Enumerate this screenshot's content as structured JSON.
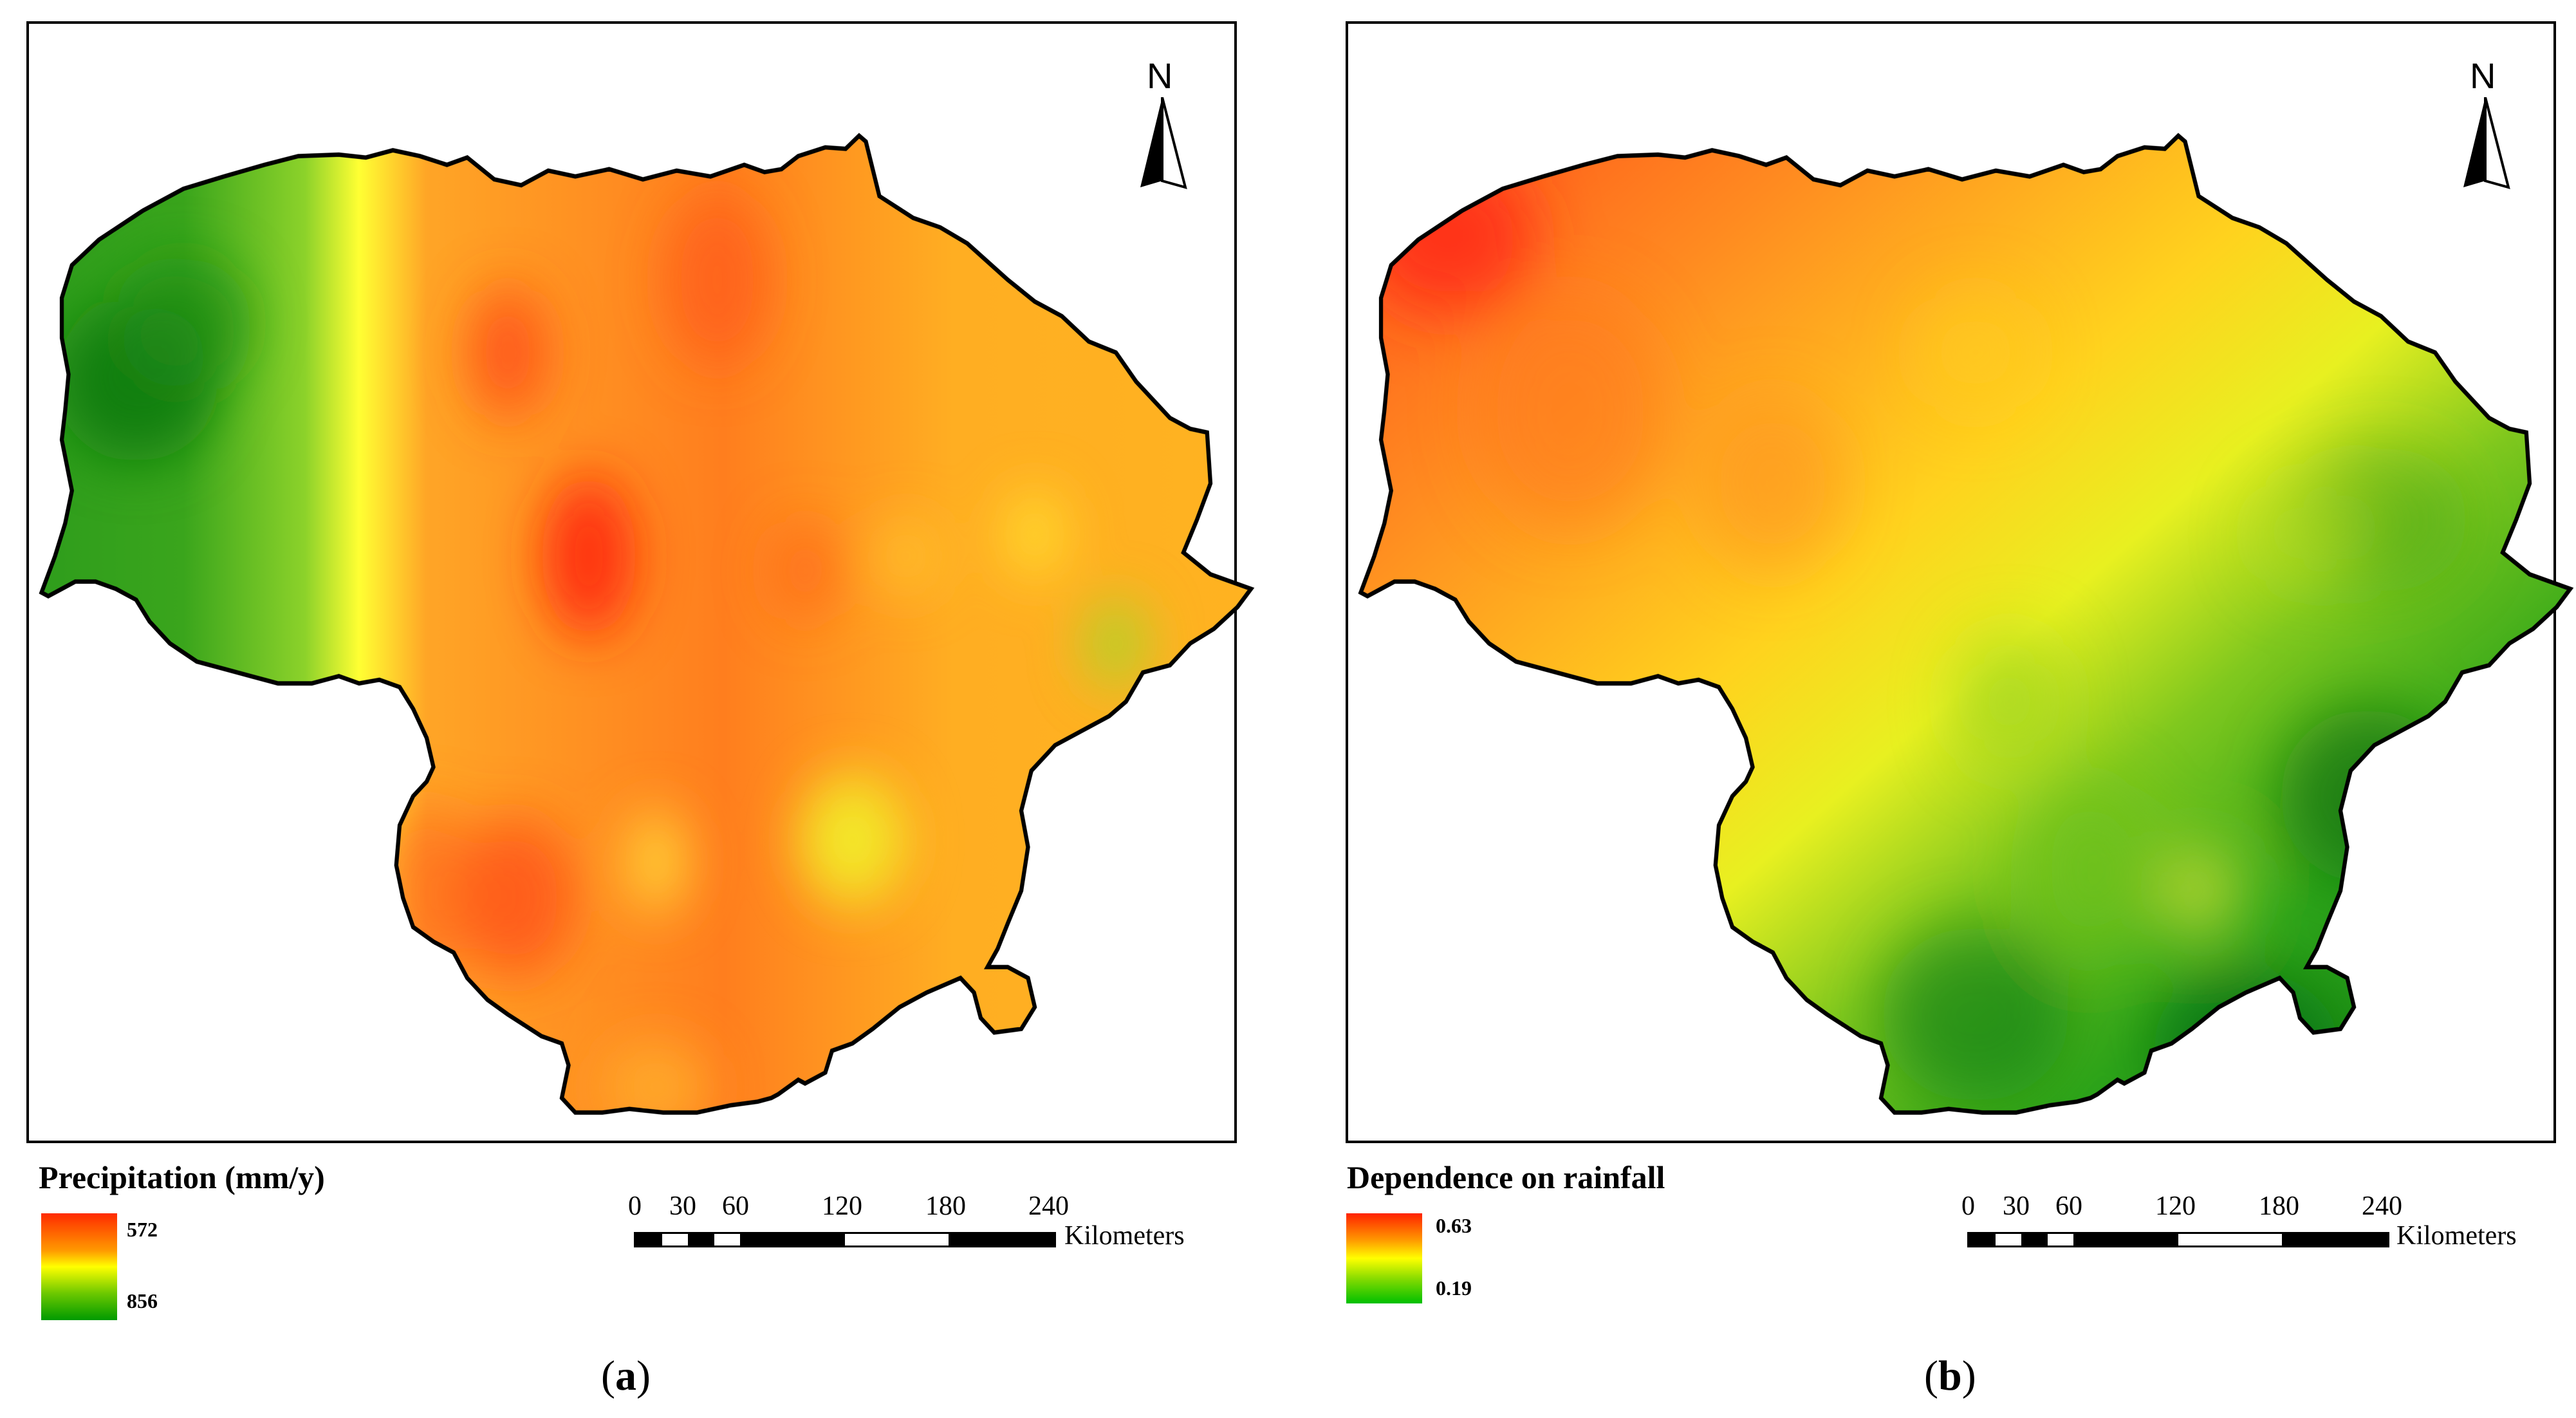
{
  "panels": [
    {
      "id": "a",
      "caption_letter": "a",
      "legend_title": "Precipitation (mm/y)",
      "legend_high_label": "572",
      "legend_low_label": "856",
      "ramp_colors": [
        "#ff2a00",
        "#ffff00",
        "#009a00"
      ],
      "north_label": "N",
      "scale_ticks": [
        "0",
        "30",
        "60",
        "120",
        "180",
        "240"
      ],
      "scale_unit": "Kilometers"
    },
    {
      "id": "b",
      "caption_letter": "b",
      "legend_title": "Dependence on rainfall",
      "legend_high_label": "0.63",
      "legend_low_label": "0.19",
      "ramp_colors": [
        "#ff2200",
        "#ffff00",
        "#00c000"
      ],
      "north_label": "N",
      "scale_ticks": [
        "0",
        "30",
        "60",
        "120",
        "180",
        "240"
      ],
      "scale_unit": "Kilometers"
    }
  ]
}
